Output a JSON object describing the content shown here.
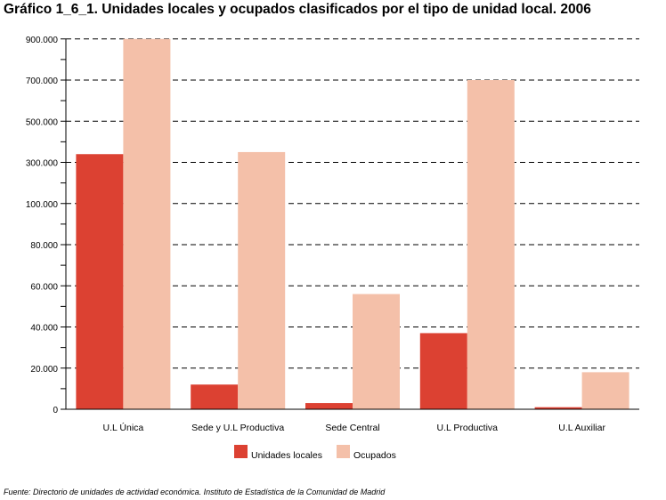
{
  "title": "Gráfico 1_6_1. Unidades locales y ocupados clasificados por el tipo de unidad local. 2006",
  "source": "Fuente: Directorio de unidades de actividad económica. Instituto de Estadística de la Comunidad de Madrid",
  "chart_data": {
    "type": "bar",
    "title": "Gráfico 1_6_1. Unidades locales y ocupados clasificados por el tipo de unidad local. 2006",
    "categories": [
      "U.L Única",
      "Sede y U.L Productiva",
      "Sede Central",
      "U.L Productiva",
      "U.L Auxiliar"
    ],
    "yticks": [
      "0",
      "20.000",
      "40.000",
      "60.000",
      "80.000",
      "100.000",
      "300.000",
      "500.000",
      "700.000",
      "900.000"
    ],
    "y_scale": "piecewise: linear 0–100.000 (step 20.000), then linear 100.000–900.000 (step 200.000)",
    "grid": "horizontal dashed",
    "legend_position": "bottom",
    "series": [
      {
        "name": "Unidades locales",
        "color": "#dc4132",
        "values": [
          340000,
          12000,
          3000,
          37000,
          1000
        ]
      },
      {
        "name": "Ocupados",
        "color": "#f4c0a9",
        "values": [
          900000,
          350000,
          56000,
          700000,
          18000
        ]
      }
    ]
  }
}
